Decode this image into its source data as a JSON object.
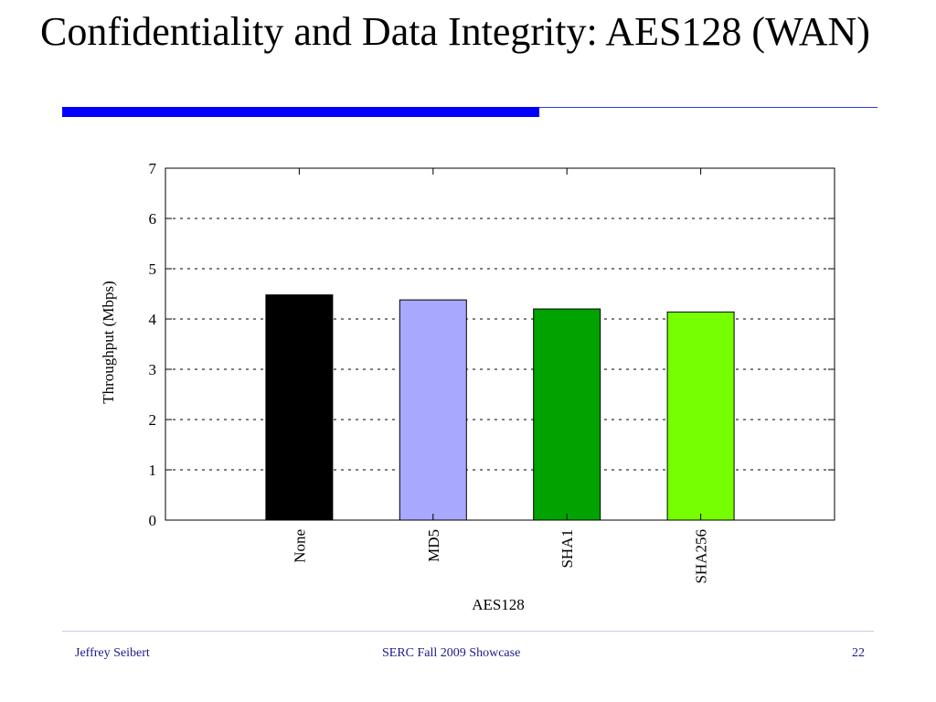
{
  "slide": {
    "title": "Confidentiality and Data Integrity: AES128 (WAN)",
    "accent_color": "#0000ff"
  },
  "footer": {
    "author": "Jeffrey Seibert",
    "event": "SERC Fall 2009 Showcase",
    "page": "22",
    "color": "#1a1a8c"
  },
  "chart_data": {
    "type": "bar",
    "categories": [
      "None",
      "MD5",
      "SHA1",
      "SHA256"
    ],
    "values": [
      4.48,
      4.38,
      4.2,
      4.14
    ],
    "colors": [
      "#000000",
      "#a8a8ff",
      "#00a300",
      "#76ff00"
    ],
    "title": "",
    "xlabel": "AES128",
    "ylabel": "Throughput (Mbps)",
    "ylim": [
      0,
      7
    ],
    "yticks": [
      0,
      1,
      2,
      3,
      4,
      5,
      6,
      7
    ],
    "grid": true,
    "grid_style": "dotted",
    "xtick_rotation": "vertical"
  }
}
